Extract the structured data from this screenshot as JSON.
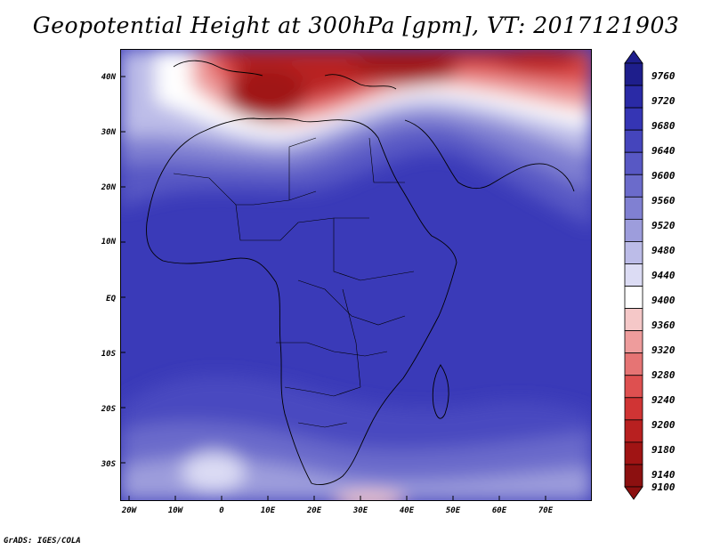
{
  "title": "Geopotential Height at 300hPa [gpm], VT: 2017121903",
  "footer": "GrADS: IGES/COLA",
  "map": {
    "lat_labels": [
      "40N",
      "30N",
      "20N",
      "10N",
      "EQ",
      "10S",
      "20S",
      "30S"
    ],
    "lon_labels": [
      "20W",
      "10W",
      "0",
      "10E",
      "20E",
      "30E",
      "40E",
      "50E",
      "60E",
      "70E"
    ]
  },
  "colorbar": {
    "levels": [
      "9760",
      "9720",
      "9680",
      "9640",
      "9600",
      "9560",
      "9520",
      "9480",
      "9440",
      "9400",
      "9360",
      "9320",
      "9280",
      "9240",
      "9200",
      "9180",
      "9140",
      "9100"
    ],
    "colors": [
      "#1e1e8c",
      "#2a2aa6",
      "#3535b4",
      "#4545bc",
      "#5858c4",
      "#6b6bcb",
      "#8080d2",
      "#9d9ddc",
      "#bcbce8",
      "#dcdcf4",
      "#ffffff",
      "#f5c8c8",
      "#ee9c9c",
      "#e67474",
      "#de5050",
      "#d03434",
      "#b82020",
      "#a01414",
      "#8c1010"
    ]
  }
}
